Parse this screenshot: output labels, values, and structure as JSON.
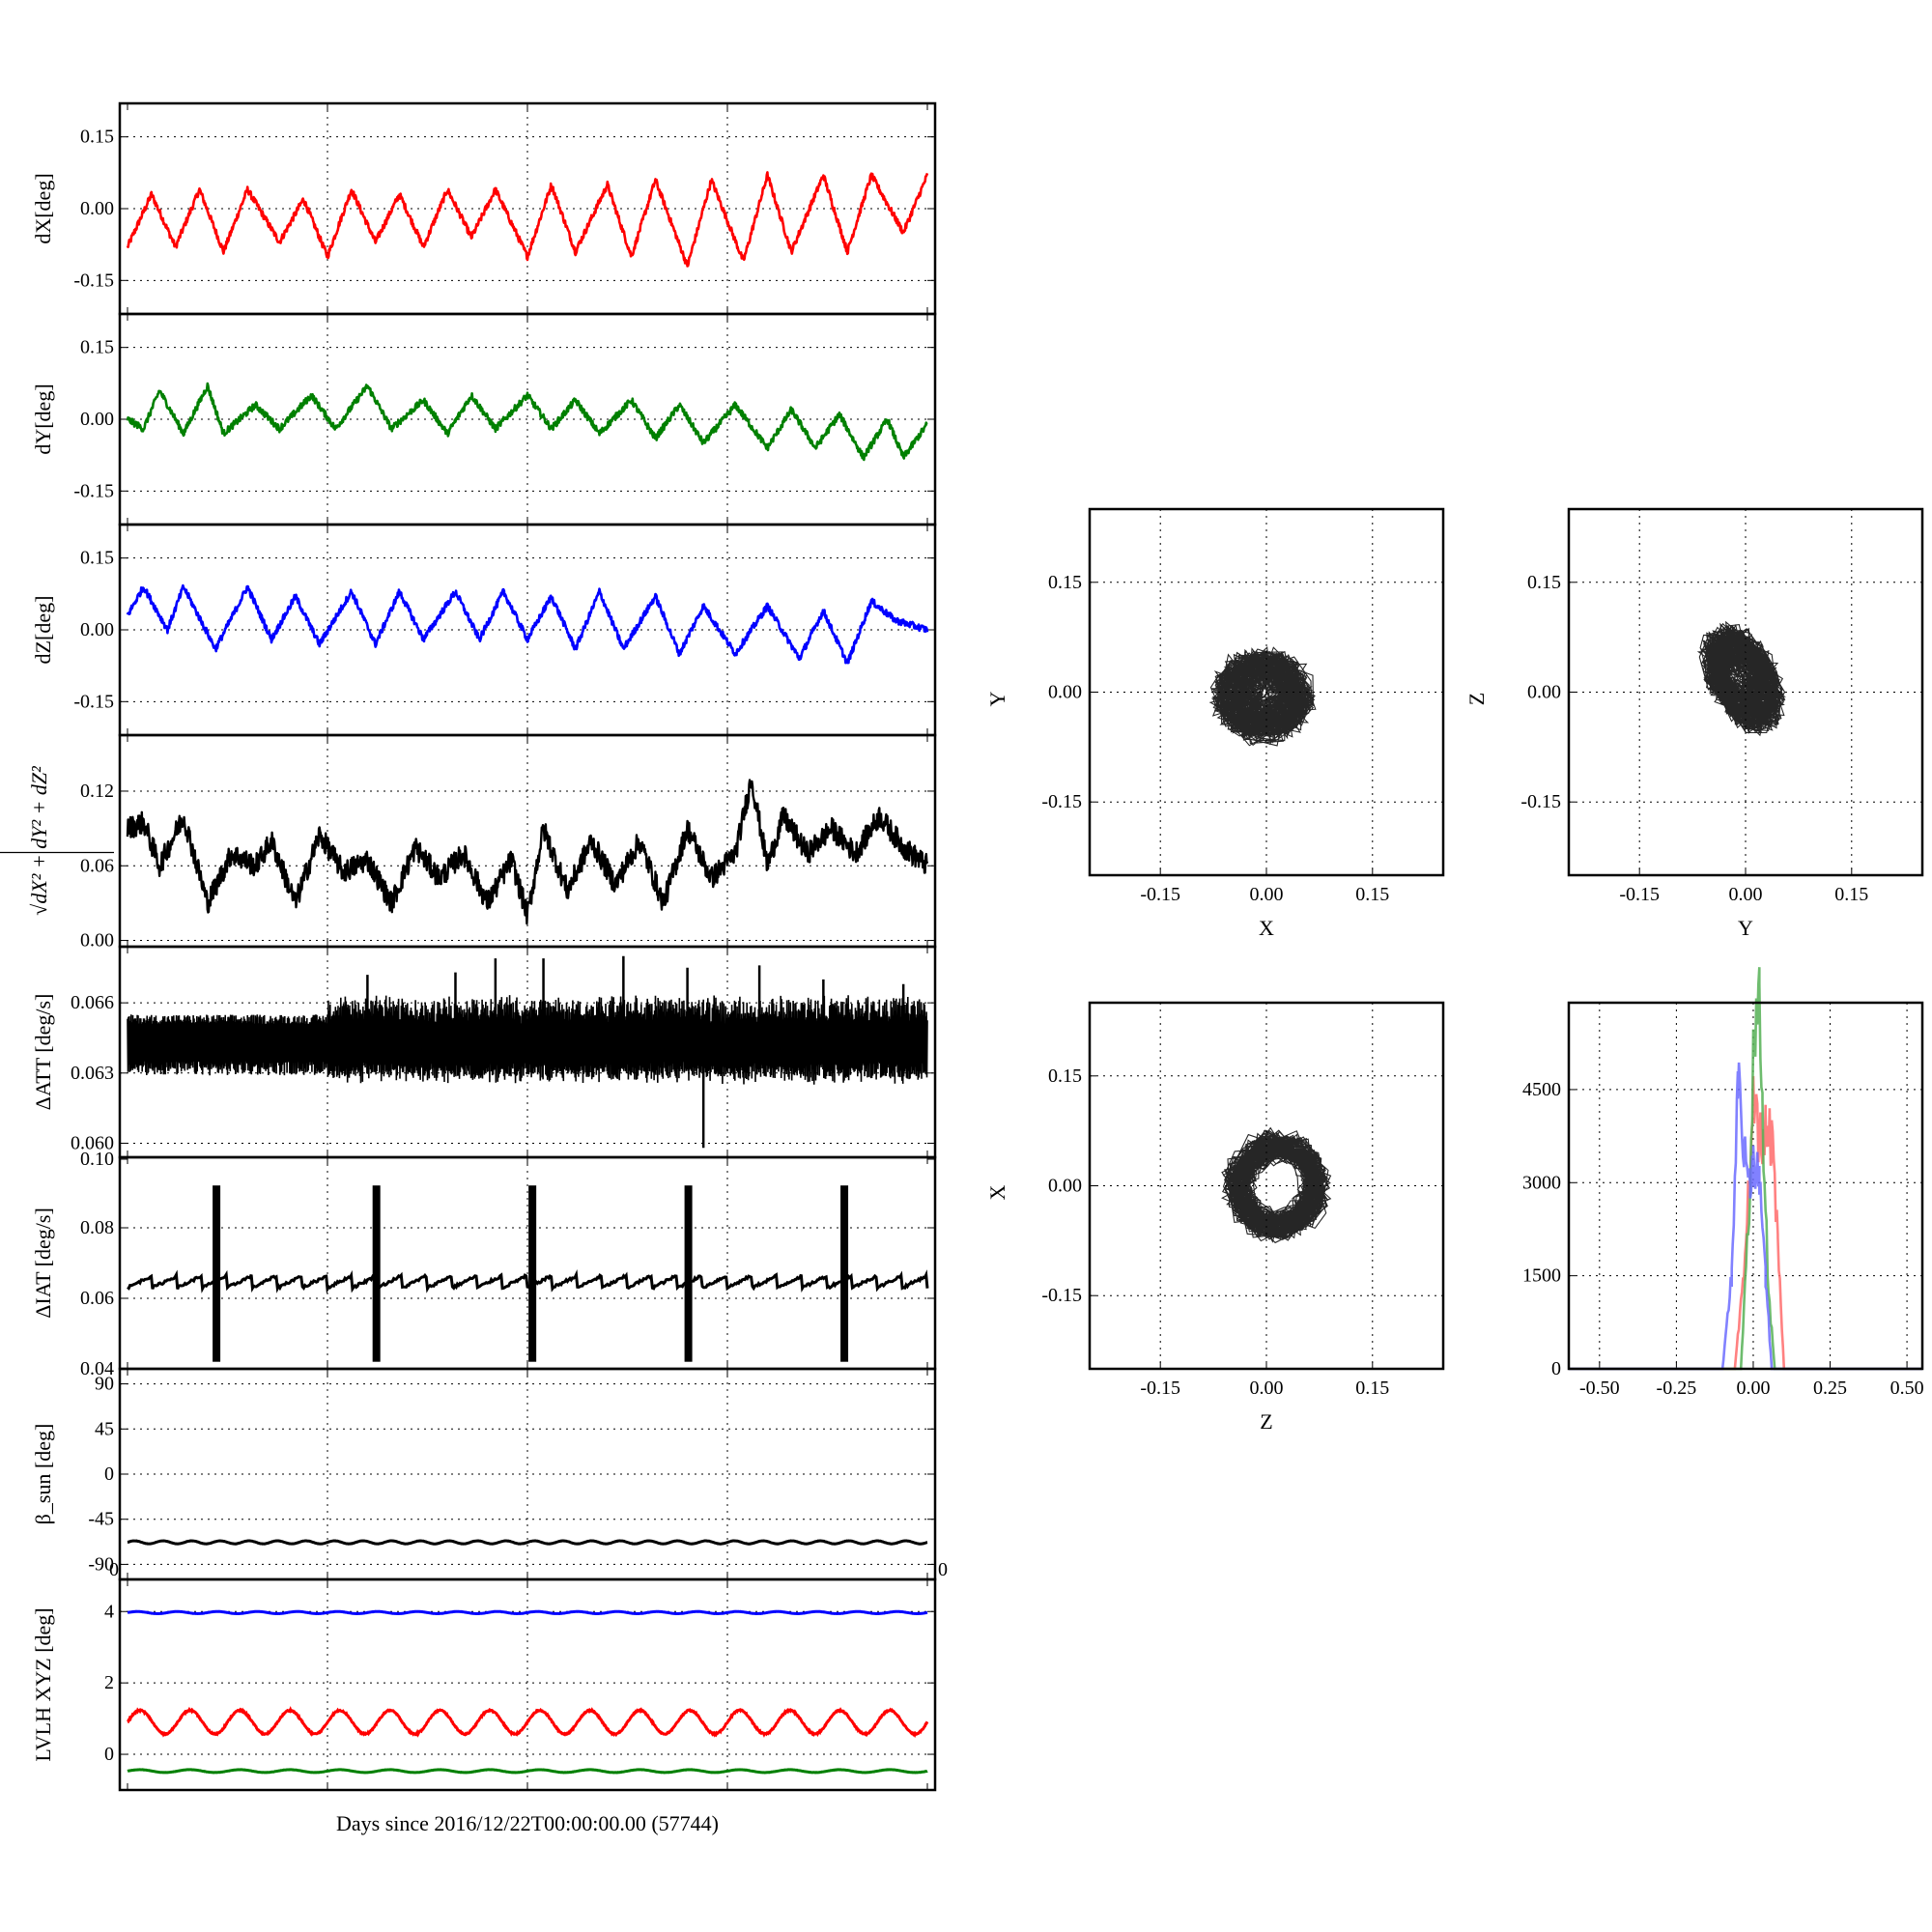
{
  "x_axis_label": "Days since 2016/12/22T00:00:00.00 (57744)",
  "colors": {
    "red": "#ff0000",
    "green": "#008000",
    "blue": "#0000ff",
    "black": "#000000",
    "hist_red": "#ff6b6b",
    "hist_green": "#55b055",
    "hist_blue": "#6b6bff"
  },
  "chart_data": [
    {
      "id": "dX",
      "type": "line",
      "ylabel": "dX[deg]",
      "yticks": [
        "0.15",
        "0.00",
        "-0.15"
      ],
      "ylim": [
        -0.22,
        0.22
      ],
      "xlim": [
        0,
        1
      ],
      "grid": true,
      "series": [
        {
          "color": "#ff0000",
          "periods": 16,
          "amp": 0.045,
          "offset": -0.02,
          "noise": 0.012,
          "sparse": [
            [
              0,
              -0.08
            ],
            [
              0.03,
              0.03
            ],
            [
              0.06,
              -0.08
            ],
            [
              0.09,
              0.04
            ],
            [
              0.12,
              -0.09
            ],
            [
              0.15,
              0.04
            ],
            [
              0.19,
              -0.07
            ],
            [
              0.22,
              0.02
            ],
            [
              0.25,
              -0.1
            ],
            [
              0.28,
              0.04
            ],
            [
              0.31,
              -0.07
            ],
            [
              0.34,
              0.03
            ],
            [
              0.37,
              -0.08
            ],
            [
              0.4,
              0.04
            ],
            [
              0.43,
              -0.06
            ],
            [
              0.46,
              0.04
            ],
            [
              0.5,
              -0.1
            ],
            [
              0.53,
              0.05
            ],
            [
              0.56,
              -0.09
            ],
            [
              0.6,
              0.05
            ],
            [
              0.63,
              -0.1
            ],
            [
              0.66,
              0.06
            ],
            [
              0.7,
              -0.12
            ],
            [
              0.73,
              0.06
            ],
            [
              0.77,
              -0.11
            ],
            [
              0.8,
              0.07
            ],
            [
              0.83,
              -0.09
            ],
            [
              0.87,
              0.07
            ],
            [
              0.9,
              -0.09
            ],
            [
              0.93,
              0.07
            ],
            [
              0.97,
              -0.05
            ],
            [
              1.0,
              0.07
            ]
          ]
        }
      ]
    },
    {
      "id": "dY",
      "type": "line",
      "ylabel": "dY[deg]",
      "yticks": [
        "0.15",
        "0.00",
        "-0.15"
      ],
      "ylim": [
        -0.22,
        0.22
      ],
      "xlim": [
        0,
        1
      ],
      "grid": true,
      "series": [
        {
          "color": "#008000",
          "sparse": [
            [
              0,
              0.0
            ],
            [
              0.02,
              -0.02
            ],
            [
              0.04,
              0.06
            ],
            [
              0.07,
              -0.03
            ],
            [
              0.1,
              0.07
            ],
            [
              0.12,
              -0.03
            ],
            [
              0.16,
              0.03
            ],
            [
              0.19,
              -0.02
            ],
            [
              0.23,
              0.05
            ],
            [
              0.26,
              -0.02
            ],
            [
              0.3,
              0.07
            ],
            [
              0.33,
              -0.02
            ],
            [
              0.37,
              0.04
            ],
            [
              0.4,
              -0.03
            ],
            [
              0.43,
              0.05
            ],
            [
              0.46,
              -0.02
            ],
            [
              0.5,
              0.05
            ],
            [
              0.53,
              -0.02
            ],
            [
              0.56,
              0.04
            ],
            [
              0.59,
              -0.03
            ],
            [
              0.63,
              0.04
            ],
            [
              0.66,
              -0.04
            ],
            [
              0.69,
              0.03
            ],
            [
              0.72,
              -0.05
            ],
            [
              0.76,
              0.03
            ],
            [
              0.8,
              -0.06
            ],
            [
              0.83,
              0.02
            ],
            [
              0.86,
              -0.06
            ],
            [
              0.89,
              0.01
            ],
            [
              0.92,
              -0.08
            ],
            [
              0.95,
              0.0
            ],
            [
              0.97,
              -0.08
            ],
            [
              1.0,
              -0.01
            ]
          ]
        }
      ]
    },
    {
      "id": "dZ",
      "type": "line",
      "ylabel": "dZ[deg]",
      "yticks": [
        "0.15",
        "0.00",
        "-0.15"
      ],
      "ylim": [
        -0.22,
        0.22
      ],
      "xlim": [
        0,
        1
      ],
      "grid": true,
      "series": [
        {
          "color": "#0000ff",
          "sparse": [
            [
              0,
              0.03
            ],
            [
              0.02,
              0.09
            ],
            [
              0.05,
              0.0
            ],
            [
              0.07,
              0.09
            ],
            [
              0.11,
              -0.04
            ],
            [
              0.15,
              0.09
            ],
            [
              0.18,
              -0.02
            ],
            [
              0.21,
              0.07
            ],
            [
              0.24,
              -0.03
            ],
            [
              0.28,
              0.08
            ],
            [
              0.31,
              -0.03
            ],
            [
              0.34,
              0.08
            ],
            [
              0.37,
              -0.02
            ],
            [
              0.41,
              0.08
            ],
            [
              0.44,
              -0.02
            ],
            [
              0.47,
              0.08
            ],
            [
              0.5,
              -0.02
            ],
            [
              0.53,
              0.07
            ],
            [
              0.56,
              -0.04
            ],
            [
              0.59,
              0.08
            ],
            [
              0.62,
              -0.04
            ],
            [
              0.66,
              0.07
            ],
            [
              0.69,
              -0.05
            ],
            [
              0.72,
              0.05
            ],
            [
              0.76,
              -0.05
            ],
            [
              0.8,
              0.05
            ],
            [
              0.84,
              -0.06
            ],
            [
              0.87,
              0.04
            ],
            [
              0.9,
              -0.07
            ],
            [
              0.93,
              0.06
            ],
            [
              0.96,
              0.02
            ],
            [
              1.0,
              0.0
            ]
          ]
        }
      ]
    },
    {
      "id": "dR",
      "type": "line",
      "ylabel": "√dX² + dY² + dZ²",
      "yticks": [
        "0.12",
        "0.06",
        "0.00"
      ],
      "ylim": [
        -0.005,
        0.165
      ],
      "xlim": [
        0,
        1
      ],
      "grid": true,
      "series": [
        {
          "color": "#000000",
          "sparse": [
            [
              0,
              0.09
            ],
            [
              0.02,
              0.095
            ],
            [
              0.04,
              0.06
            ],
            [
              0.07,
              0.1
            ],
            [
              0.1,
              0.03
            ],
            [
              0.13,
              0.07
            ],
            [
              0.16,
              0.06
            ],
            [
              0.18,
              0.08
            ],
            [
              0.21,
              0.03
            ],
            [
              0.24,
              0.085
            ],
            [
              0.27,
              0.055
            ],
            [
              0.3,
              0.065
            ],
            [
              0.33,
              0.03
            ],
            [
              0.36,
              0.075
            ],
            [
              0.39,
              0.05
            ],
            [
              0.42,
              0.07
            ],
            [
              0.45,
              0.03
            ],
            [
              0.48,
              0.065
            ],
            [
              0.5,
              0.02
            ],
            [
              0.52,
              0.09
            ],
            [
              0.55,
              0.04
            ],
            [
              0.58,
              0.08
            ],
            [
              0.61,
              0.045
            ],
            [
              0.64,
              0.08
            ],
            [
              0.67,
              0.03
            ],
            [
              0.7,
              0.09
            ],
            [
              0.73,
              0.05
            ],
            [
              0.76,
              0.07
            ],
            [
              0.78,
              0.13
            ],
            [
              0.8,
              0.06
            ],
            [
              0.82,
              0.1
            ],
            [
              0.85,
              0.07
            ],
            [
              0.88,
              0.09
            ],
            [
              0.91,
              0.07
            ],
            [
              0.94,
              0.1
            ],
            [
              0.97,
              0.075
            ],
            [
              1.0,
              0.06
            ]
          ]
        }
      ]
    },
    {
      "id": "dATT",
      "type": "line",
      "ylabel": "ΔATT [deg/s]",
      "yticks": [
        "0.066",
        "0.063",
        "0.060"
      ],
      "ylim": [
        0.0594,
        0.0684
      ],
      "xlim": [
        0,
        1
      ],
      "grid": true,
      "series": [
        {
          "color": "#000000",
          "band_lo": 0.0629,
          "band_hi": 0.0651,
          "spikes": [
            [
              0.3,
              0.0672
            ],
            [
              0.41,
              0.0673
            ],
            [
              0.46,
              0.0679
            ],
            [
              0.52,
              0.0679
            ],
            [
              0.62,
              0.068
            ],
            [
              0.7,
              0.0675
            ],
            [
              0.72,
              0.0598
            ],
            [
              0.79,
              0.0676
            ],
            [
              0.87,
              0.067
            ],
            [
              0.97,
              0.0668
            ]
          ]
        }
      ]
    },
    {
      "id": "dIAT",
      "type": "line",
      "ylabel": "ΔIAT [deg/s]",
      "yticks": [
        "0.10",
        "0.08",
        "0.06",
        "0.04"
      ],
      "ylim": [
        0.04,
        0.1
      ],
      "xlim": [
        0,
        1
      ],
      "grid": true,
      "series": [
        {
          "color": "#000000",
          "base_lo": 0.063,
          "base_hi": 0.0665,
          "bursts": [
            0.11,
            0.31,
            0.505,
            0.7,
            0.895
          ],
          "burst_lo": 0.042,
          "burst_hi": 0.092
        }
      ]
    },
    {
      "id": "beta",
      "type": "line",
      "ylabel": "β_sun [deg]",
      "yticks": [
        "90",
        "45",
        "0",
        "-45",
        "-90"
      ],
      "ylim": [
        -105,
        105
      ],
      "xlim": [
        0,
        1
      ],
      "grid": true,
      "series": [
        {
          "color": "#000000",
          "base": -68,
          "amp": 1.5,
          "periods": 28
        }
      ]
    },
    {
      "id": "lvlh",
      "type": "line",
      "ylabel": "LVLH XYZ [deg]",
      "yticks": [
        "4",
        "2",
        "0"
      ],
      "ylim": [
        -1.0,
        4.9
      ],
      "xlim": [
        0,
        1
      ],
      "grid": true,
      "corner_ticks": [
        "0",
        "0"
      ],
      "series": [
        {
          "color": "#0000ff",
          "base": 3.97,
          "amp": 0.03,
          "periods": 20
        },
        {
          "color": "#ff0000",
          "base": 0.9,
          "amp": 0.33,
          "periods": 16
        },
        {
          "color": "#008000",
          "base": -0.47,
          "amp": 0.04,
          "periods": 16
        }
      ]
    },
    {
      "id": "XY",
      "type": "scatter",
      "xlabel": "X",
      "ylabel": "Y",
      "xticks": [
        "-0.15",
        "0.00",
        "0.15"
      ],
      "yticks": [
        "0.15",
        "0.00",
        "-0.15"
      ],
      "xlim": [
        -0.25,
        0.25
      ],
      "ylim": [
        -0.25,
        0.25
      ],
      "grid": true,
      "cloud": {
        "cx": -0.005,
        "cy": -0.005,
        "rx": 0.07,
        "ry": 0.06
      }
    },
    {
      "id": "YZ",
      "type": "scatter",
      "xlabel": "Y",
      "ylabel": "Z",
      "xticks": [
        "-0.15",
        "0.00",
        "0.15"
      ],
      "yticks": [
        "0.15",
        "0.00",
        "-0.15"
      ],
      "xlim": [
        -0.25,
        0.25
      ],
      "ylim": [
        -0.25,
        0.25
      ],
      "grid": true,
      "cloud": {
        "cx": -0.005,
        "cy": 0.02,
        "rx": 0.06,
        "ry": 0.07,
        "tilt": -0.45
      }
    },
    {
      "id": "ZX",
      "type": "scatter",
      "xlabel": "Z",
      "ylabel": "X",
      "xticks": [
        "-0.15",
        "0.00",
        "0.15"
      ],
      "yticks": [
        "0.15",
        "0.00",
        "-0.15"
      ],
      "xlim": [
        -0.25,
        0.25
      ],
      "ylim": [
        -0.25,
        0.25
      ],
      "grid": true,
      "cloud": {
        "cx": 0.015,
        "cy": 0.0,
        "rx": 0.07,
        "ry": 0.07,
        "ring": true
      }
    },
    {
      "id": "hist",
      "type": "line",
      "xticks": [
        "-0.50",
        "-0.25",
        "0.00",
        "0.25",
        "0.50"
      ],
      "yticks": [
        "4500",
        "3000",
        "1500",
        "0"
      ],
      "xlim": [
        -0.6,
        0.55
      ],
      "ylim": [
        0,
        5900
      ],
      "grid": true,
      "series": [
        {
          "color": "#ff6b6b",
          "x": [
            -0.6,
            -0.06,
            -0.03,
            0.0,
            0.02,
            0.04,
            0.06,
            0.08,
            0.1,
            0.55
          ],
          "y": [
            0,
            0,
            1500,
            4300,
            3700,
            3800,
            3700,
            2000,
            0,
            0
          ]
        },
        {
          "color": "#55b055",
          "x": [
            -0.6,
            -0.04,
            -0.01,
            0.0,
            0.02,
            0.03,
            0.05,
            0.07,
            0.55
          ],
          "y": [
            0,
            0,
            3000,
            5200,
            5900,
            4000,
            1200,
            0,
            0
          ]
        },
        {
          "color": "#6b6bff",
          "x": [
            -0.6,
            -0.1,
            -0.07,
            -0.05,
            -0.03,
            -0.01,
            0.0,
            0.02,
            0.04,
            0.06,
            0.55
          ],
          "y": [
            0,
            0,
            1500,
            4700,
            3500,
            3000,
            3200,
            3100,
            1500,
            0,
            0
          ]
        }
      ]
    }
  ]
}
